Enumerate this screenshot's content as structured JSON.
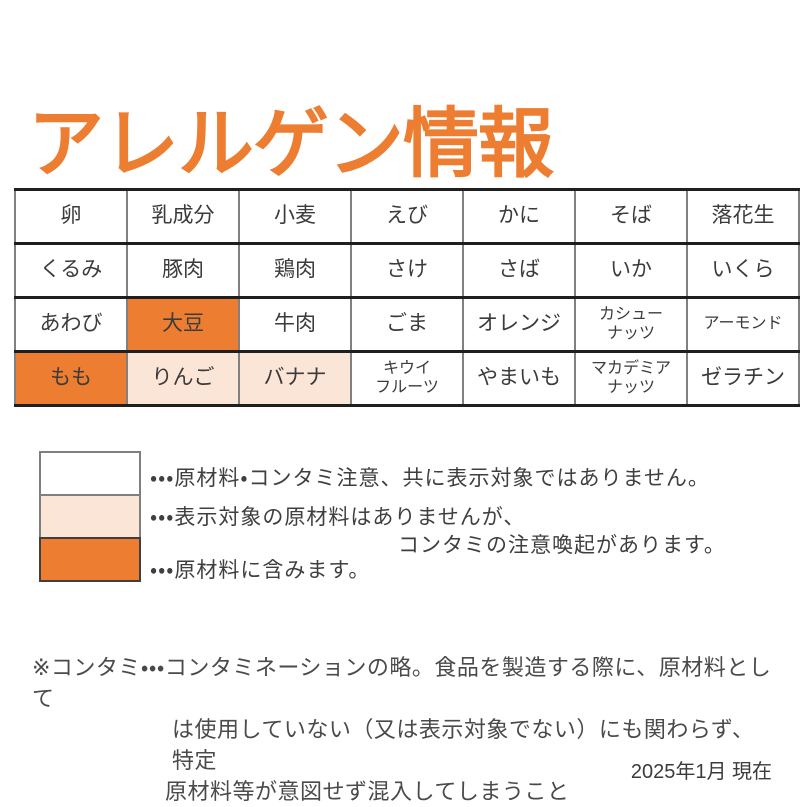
{
  "title": "アレルゲン情報",
  "colors": {
    "accent": "#ED7D31",
    "accent_light": "#FBE5D6",
    "grid_dark": "#1F1F1F",
    "grid_gray": "#808080",
    "text": "#3B3B3B"
  },
  "table": {
    "rows": [
      [
        {
          "label": "卵",
          "fill": "none"
        },
        {
          "label": "乳成分",
          "fill": "none"
        },
        {
          "label": "小麦",
          "fill": "none"
        },
        {
          "label": "えび",
          "fill": "none"
        },
        {
          "label": "かに",
          "fill": "none"
        },
        {
          "label": "そば",
          "fill": "none"
        },
        {
          "label": "落花生",
          "fill": "none"
        }
      ],
      [
        {
          "label": "くるみ",
          "fill": "none"
        },
        {
          "label": "豚肉",
          "fill": "none"
        },
        {
          "label": "鶏肉",
          "fill": "none"
        },
        {
          "label": "さけ",
          "fill": "none"
        },
        {
          "label": "さば",
          "fill": "none"
        },
        {
          "label": "いか",
          "fill": "none"
        },
        {
          "label": "いくら",
          "fill": "none"
        }
      ],
      [
        {
          "label": "あわび",
          "fill": "none"
        },
        {
          "label": "大豆",
          "fill": "orange"
        },
        {
          "label": "牛肉",
          "fill": "none"
        },
        {
          "label": "ごま",
          "fill": "none"
        },
        {
          "label": "オレンジ",
          "fill": "none"
        },
        {
          "label": "カシュー\nナッツ",
          "fill": "none",
          "small": true
        },
        {
          "label": "アーモンド",
          "fill": "none",
          "small": true
        }
      ],
      [
        {
          "label": "もも",
          "fill": "orange"
        },
        {
          "label": "りんご",
          "fill": "peach"
        },
        {
          "label": "バナナ",
          "fill": "peach"
        },
        {
          "label": "キウイ\nフルーツ",
          "fill": "none",
          "small": true
        },
        {
          "label": "やまいも",
          "fill": "none"
        },
        {
          "label": "マカデミア\nナッツ",
          "fill": "none",
          "small": true
        },
        {
          "label": "ゼラチン",
          "fill": "none"
        }
      ]
    ]
  },
  "legend": {
    "items": [
      {
        "swatch": "white",
        "text": "・・・原材料・コンタミ注意、共に表示対象ではありません。"
      },
      {
        "swatch": "peach",
        "line1": "・・・表示対象の原材料はありませんが、",
        "line2": "コンタミの注意喚起があります。"
      },
      {
        "swatch": "orange",
        "text": "・・・原材料に含みます。"
      }
    ]
  },
  "note": {
    "line1": "※コンタミ・・・コンタミネーションの略。食品を製造する際に、原材料として",
    "line2": "は使用していない（又は表示対象でない）にも関わらず、特定",
    "line3": "原材料等が意図せず混入してしまうこと"
  },
  "footer": {
    "date": "2025年1月 現在"
  }
}
